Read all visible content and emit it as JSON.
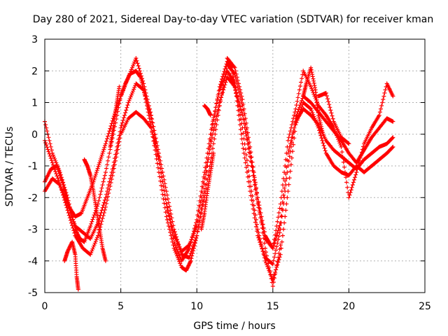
{
  "chart_data": {
    "type": "scatter",
    "title": "Day 280 of 2021, Sidereal Day-to-day VTEC variation (SDTVAR) for receiver kman",
    "xlabel": "GPS time / hours",
    "ylabel": "SDTVAR / TECUs",
    "xlim": [
      0,
      25
    ],
    "ylim": [
      -5,
      3
    ],
    "xticks": [
      "0",
      "5",
      "10",
      "15",
      "20",
      "25"
    ],
    "yticks": [
      "-5",
      "-4",
      "-3",
      "-2",
      "-1",
      "0",
      "1",
      "2",
      "3"
    ],
    "grid": true,
    "marker": "+",
    "color": "#ff0000",
    "series": [
      {
        "x": [
          0.0,
          0.5,
          1.0,
          1.5,
          2.0,
          2.3,
          2.6,
          3.0,
          3.5,
          4.0,
          4.5,
          5.0,
          5.3,
          5.6,
          6.0,
          6.3,
          6.6,
          7.0,
          7.5,
          8.0,
          8.5,
          9.0,
          9.3,
          9.6,
          10.0,
          10.5,
          11.0,
          11.5,
          12.0,
          12.3,
          12.6,
          13.0,
          13.5,
          14.0,
          14.5,
          15.0,
          15.5,
          16.0,
          16.5,
          17.0,
          17.5,
          18.0,
          18.5,
          19.0,
          19.5,
          20.0,
          20.5,
          21.0,
          21.5,
          22.0,
          22.5,
          22.9
        ],
        "y": [
          0.4,
          -0.6,
          -1.2,
          -2.0,
          -3.0,
          -3.3,
          -3.4,
          -2.9,
          -2.2,
          -1.2,
          0.0,
          1.2,
          1.6,
          1.9,
          2.0,
          1.8,
          1.2,
          0.2,
          -1.2,
          -2.6,
          -3.6,
          -4.2,
          -4.3,
          -4.0,
          -3.2,
          -1.8,
          0.2,
          1.5,
          2.3,
          2.1,
          1.2,
          -0.3,
          -1.8,
          -3.2,
          -3.9,
          -4.1,
          -3.0,
          -1.0,
          0.5,
          1.2,
          1.0,
          0.7,
          0.4,
          0.1,
          -0.2,
          -0.6,
          -0.9,
          -0.5,
          -0.1,
          0.2,
          0.5,
          0.4
        ]
      },
      {
        "x": [
          0.0,
          0.5,
          1.0,
          1.5,
          2.0,
          2.5,
          3.0,
          3.5,
          4.0,
          4.5,
          5.0,
          5.5,
          6.0,
          6.5,
          7.0,
          7.5,
          8.0,
          8.5,
          9.0,
          9.5,
          10.0,
          10.5,
          11.0,
          11.5,
          12.0,
          12.5,
          13.0,
          13.5,
          14.0,
          14.5,
          15.0,
          15.5,
          16.0,
          16.5,
          17.0,
          17.5,
          18.0,
          18.5,
          19.0,
          19.5,
          20.0,
          20.5,
          21.0,
          21.5,
          22.0,
          22.5,
          22.9
        ],
        "y": [
          -0.2,
          -0.9,
          -1.6,
          -2.4,
          -3.2,
          -3.6,
          -3.8,
          -3.2,
          -2.3,
          -1.2,
          0.0,
          0.5,
          0.7,
          0.5,
          0.2,
          -0.8,
          -2.2,
          -3.2,
          -3.7,
          -3.5,
          -2.9,
          -1.4,
          -0.1,
          1.0,
          1.8,
          1.5,
          0.6,
          -0.7,
          -2.2,
          -3.3,
          -3.6,
          -2.8,
          -0.6,
          0.4,
          0.8,
          0.6,
          0.3,
          -0.2,
          -0.5,
          -0.7,
          -0.9,
          -1.1,
          -0.8,
          -0.6,
          -0.4,
          -0.3,
          -0.1
        ]
      },
      {
        "x": [
          0.0,
          0.4,
          0.8,
          1.2,
          1.6,
          2.0,
          2.4,
          2.8,
          3.2,
          3.6,
          4.0,
          4.5,
          5.0,
          5.5,
          6.0,
          6.5,
          7.0,
          7.5,
          8.0,
          8.5,
          9.0,
          9.5,
          10.0,
          10.5,
          11.0,
          11.5,
          12.0,
          12.5,
          13.0,
          13.5,
          14.0,
          14.5,
          15.0,
          15.5,
          16.0,
          16.5,
          17.0,
          17.5,
          18.0,
          18.5,
          19.0,
          19.5,
          20.0,
          20.5,
          21.0,
          21.5,
          22.0,
          22.5,
          22.9
        ],
        "y": [
          -1.5,
          -1.1,
          -1.0,
          -1.6,
          -2.3,
          -2.6,
          -2.5,
          -2.0,
          -1.5,
          -0.9,
          -0.3,
          0.5,
          1.2,
          1.8,
          2.4,
          1.6,
          0.6,
          -0.6,
          -1.8,
          -3.0,
          -3.8,
          -3.9,
          -3.2,
          -2.0,
          -0.6,
          0.9,
          2.2,
          1.9,
          0.9,
          -0.6,
          -2.0,
          -3.2,
          -3.6,
          -2.2,
          -0.2,
          0.8,
          2.0,
          1.5,
          0.9,
          0.6,
          0.2,
          -0.4,
          -2.0,
          -1.2,
          -0.3,
          0.2,
          0.6,
          1.6,
          1.2
        ]
      },
      {
        "x": [
          0.0,
          0.5,
          1.0,
          1.5,
          2.0,
          2.5,
          3.0,
          3.5,
          4.0,
          4.5,
          5.0,
          5.5,
          6.0,
          6.5,
          7.0,
          7.5,
          8.0,
          8.5,
          9.0,
          9.5,
          10.0,
          10.5,
          11.0,
          11.5,
          12.0,
          12.5,
          13.0,
          13.5,
          14.0,
          14.5,
          15.0,
          15.5,
          16.0,
          16.5,
          17.0,
          17.5,
          18.0,
          18.5,
          19.0,
          19.5,
          20.0,
          20.5,
          21.0,
          21.5,
          22.0,
          22.5,
          22.9
        ],
        "y": [
          -1.8,
          -1.4,
          -1.6,
          -2.2,
          -2.9,
          -3.1,
          -3.3,
          -2.8,
          -2.0,
          -1.0,
          0.2,
          1.0,
          1.6,
          1.4,
          0.5,
          -0.8,
          -2.2,
          -3.4,
          -4.0,
          -3.6,
          -2.7,
          -1.2,
          0.3,
          1.4,
          2.0,
          1.6,
          0.2,
          -1.5,
          -3.0,
          -4.0,
          -4.6,
          -3.8,
          -1.8,
          0.3,
          1.0,
          0.8,
          0.2,
          -0.6,
          -1.0,
          -1.2,
          -1.3,
          -1.0,
          -1.2,
          -1.0,
          -0.8,
          -0.6,
          -0.4
        ]
      },
      {
        "x": [
          1.3,
          1.5,
          1.8,
          2.0,
          2.1,
          2.2
        ],
        "y": [
          -4.0,
          -3.7,
          -3.4,
          -3.8,
          -4.5,
          -4.9
        ]
      },
      {
        "x": [
          2.6,
          2.8,
          3.0,
          3.2,
          3.4,
          3.6,
          3.8,
          4.0
        ],
        "y": [
          -0.8,
          -1.0,
          -1.3,
          -1.8,
          -2.4,
          -3.0,
          -3.6,
          -4.0
        ]
      },
      {
        "x": [
          4.3,
          4.5,
          4.7,
          4.9
        ],
        "y": [
          -0.4,
          0.2,
          0.9,
          1.5
        ]
      },
      {
        "x": [
          10.3,
          10.5,
          10.7,
          10.9,
          11.1
        ],
        "y": [
          -3.0,
          -2.5,
          -1.8,
          -1.2,
          -0.6
        ]
      },
      {
        "x": [
          10.5,
          10.7,
          10.9
        ],
        "y": [
          0.9,
          0.8,
          0.6
        ]
      },
      {
        "x": [
          12.0,
          12.5,
          13.0,
          13.5,
          14.0,
          14.5,
          15.0,
          15.5
        ],
        "y": [
          2.4,
          2.1,
          1.1,
          -0.4,
          -2.0,
          -3.6,
          -4.8,
          -3.5
        ]
      },
      {
        "x": [
          17.0,
          17.2,
          17.5,
          17.8,
          18.0,
          18.3
        ],
        "y": [
          1.2,
          1.6,
          2.1,
          1.4,
          0.6,
          0.0
        ]
      },
      {
        "x": [
          18.0,
          18.5,
          19.0,
          19.5,
          20.0
        ],
        "y": [
          1.2,
          1.3,
          0.4,
          -0.1,
          -0.3
        ]
      }
    ]
  }
}
